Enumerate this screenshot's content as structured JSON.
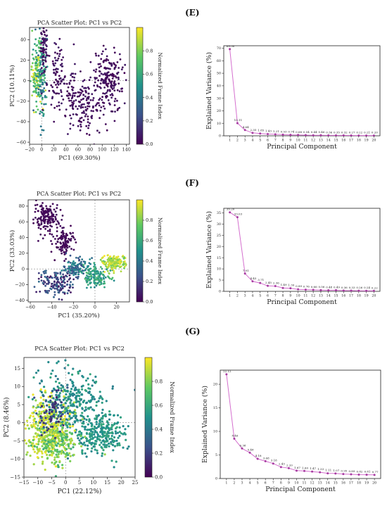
{
  "panels": [
    {
      "letter": "(E)"
    },
    {
      "letter": "(F)"
    },
    {
      "letter": "(G)"
    }
  ],
  "colormap": [
    "#440154",
    "#3b528b",
    "#21918c",
    "#5ec962",
    "#fde725"
  ],
  "chart_data": [
    {
      "id": "E_scatter",
      "type": "scatter",
      "title": "PCA Scatter Plot: PC1 vs PC2",
      "xlabel": "PC1 (69.30%)",
      "ylabel": "PC2 (10.11%)",
      "xlim": [
        -20,
        145
      ],
      "ylim": [
        -62,
        52
      ],
      "xticks": [
        -20,
        0,
        20,
        40,
        60,
        80,
        100,
        120,
        140
      ],
      "yticks": [
        -60,
        -40,
        -20,
        0,
        20,
        40
      ],
      "colorbar": {
        "label": "Normalized Frame Index",
        "range": [
          0,
          1
        ],
        "ticks": [
          "0.0",
          "0.2",
          "0.4",
          "0.6",
          "0.8"
        ]
      },
      "clusters": [
        {
          "cx": -8,
          "cy": 8,
          "sx": 5,
          "sy": 16,
          "n": 140,
          "c": [
            0.55,
            1.0
          ]
        },
        {
          "cx": 0,
          "cy": 5,
          "sx": 4,
          "sy": 22,
          "n": 110,
          "c": [
            0.3,
            0.7
          ]
        },
        {
          "cx": 3,
          "cy": 30,
          "sx": 3,
          "sy": 15,
          "n": 70,
          "c": [
            0.0,
            0.12
          ]
        },
        {
          "cx": 25,
          "cy": 5,
          "sx": 8,
          "sy": 15,
          "n": 80,
          "c": [
            0.0,
            0.1
          ]
        },
        {
          "cx": 50,
          "cy": -15,
          "sx": 12,
          "sy": 16,
          "n": 90,
          "c": [
            0.0,
            0.08
          ]
        },
        {
          "cx": 75,
          "cy": -25,
          "sx": 8,
          "sy": 15,
          "n": 80,
          "c": [
            0.0,
            0.08
          ]
        },
        {
          "cx": 110,
          "cy": 0,
          "sx": 13,
          "sy": 15,
          "n": 200,
          "c": [
            0.0,
            0.08
          ]
        }
      ]
    },
    {
      "id": "E_variance",
      "type": "line",
      "xlabel": "Principal Component",
      "ylabel": "Explained Variance (%)",
      "ylim": [
        0,
        72
      ],
      "yticks": [
        0,
        10,
        20,
        30,
        40,
        50,
        60,
        70
      ],
      "x": [
        1,
        2,
        3,
        4,
        5,
        6,
        7,
        8,
        9,
        10,
        11,
        12,
        13,
        14,
        15,
        16,
        17,
        18,
        19,
        20
      ],
      "values": [
        69.3,
        10.11,
        4.64,
        2.35,
        1.85,
        1.43,
        1.21,
        0.93,
        0.74,
        0.68,
        0.54,
        0.44,
        0.46,
        0.36,
        0.35,
        0.32,
        0.27,
        0.22,
        0.21,
        0.2
      ],
      "labels": [
        "69.30",
        "10.11",
        "4.64",
        "2.35",
        "1.85",
        "1.43",
        "1.21",
        "0.93",
        "0.74",
        "0.68",
        "0.54",
        "0.44",
        "0.46",
        "0.36",
        "0.35",
        "0.32",
        "0.27",
        "0.22",
        "0.21",
        "0.20"
      ]
    },
    {
      "id": "F_scatter",
      "type": "scatter",
      "title": "PCA Scatter Plot: PC1 vs PC2",
      "xlabel": "PC1 (35.20%)",
      "ylabel": "PC2 (33.03%)",
      "xlim": [
        -62,
        32
      ],
      "ylim": [
        -42,
        88
      ],
      "xticks": [
        -60,
        -40,
        -20,
        0,
        20
      ],
      "yticks": [
        -40,
        -20,
        0,
        20,
        40,
        60,
        80
      ],
      "colorbar": {
        "label": "Normalized Frame Index",
        "range": [
          0,
          1
        ],
        "ticks": [
          "0.0",
          "0.2",
          "0.4",
          "0.6",
          "0.8"
        ]
      },
      "clusters": [
        {
          "cx": -45,
          "cy": 65,
          "sx": 6,
          "sy": 10,
          "n": 150,
          "c": [
            0.0,
            0.05
          ]
        },
        {
          "cx": -28,
          "cy": 35,
          "sx": 5,
          "sy": 10,
          "n": 100,
          "c": [
            0.0,
            0.05
          ]
        },
        {
          "cx": -35,
          "cy": -18,
          "sx": 8,
          "sy": 8,
          "n": 150,
          "c": [
            0.05,
            0.35
          ]
        },
        {
          "cx": -18,
          "cy": 0,
          "sx": 6,
          "sy": 7,
          "n": 120,
          "c": [
            0.2,
            0.5
          ]
        },
        {
          "cx": 2,
          "cy": -10,
          "sx": 6,
          "sy": 7,
          "n": 140,
          "c": [
            0.45,
            0.7
          ]
        },
        {
          "cx": 18,
          "cy": 8,
          "sx": 6,
          "sy": 5,
          "n": 160,
          "c": [
            0.75,
            1.0
          ]
        }
      ]
    },
    {
      "id": "F_variance",
      "type": "line",
      "xlabel": "Principal Component",
      "ylabel": "Explained Variance (%)",
      "ylim": [
        0,
        37
      ],
      "yticks": [
        0,
        5,
        10,
        15,
        20,
        25,
        30,
        35
      ],
      "x": [
        1,
        2,
        3,
        4,
        5,
        6,
        7,
        8,
        9,
        10,
        11,
        12,
        13,
        14,
        15,
        16,
        17,
        18,
        19,
        20
      ],
      "values": [
        35.2,
        33.03,
        7.91,
        4.45,
        3.71,
        2.45,
        2.36,
        1.49,
        1.39,
        0.89,
        0.76,
        0.66,
        0.56,
        0.48,
        0.49,
        0.36,
        0.33,
        0.26,
        0.24,
        0.22
      ],
      "labels": [
        "35.20",
        "33.03",
        "7.91",
        "4.45",
        "3.71",
        "2.45",
        "2.36",
        "1.49",
        "1.39",
        "0.89",
        "0.76",
        "0.66",
        "0.56",
        "0.48",
        "0.49",
        "0.36",
        "0.33",
        "0.26",
        "0.24",
        "0.22"
      ]
    },
    {
      "id": "G_scatter",
      "type": "scatter",
      "title": "PCA Scatter Plot: PC1 vs PC2",
      "xlabel": "PC1 (22.12%)",
      "ylabel": "PC2 (8.46%)",
      "xlim": [
        -15,
        25
      ],
      "ylim": [
        -15,
        18
      ],
      "xticks": [
        -15,
        -10,
        -5,
        0,
        5,
        10,
        15,
        20,
        25
      ],
      "yticks": [
        -15,
        -10,
        -5,
        0,
        5,
        10,
        15
      ],
      "colorbar": {
        "label": "Normalized Frame Index",
        "range": [
          0,
          1
        ],
        "ticks": [
          "0.0",
          "0.2",
          "0.4",
          "0.6",
          "0.8"
        ]
      },
      "clusters": [
        {
          "cx": 2,
          "cy": 5,
          "sx": 6,
          "sy": 5,
          "n": 350,
          "c": [
            0.4,
            0.6
          ]
        },
        {
          "cx": 13,
          "cy": -3,
          "sx": 4,
          "sy": 3,
          "n": 250,
          "c": [
            0.45,
            0.6
          ]
        },
        {
          "cx": -6,
          "cy": -2,
          "sx": 4,
          "sy": 4,
          "n": 350,
          "c": [
            0.8,
            1.0
          ]
        },
        {
          "cx": -3,
          "cy": -6,
          "sx": 4,
          "sy": 3,
          "n": 150,
          "c": [
            0.6,
            0.9
          ]
        },
        {
          "cx": -5,
          "cy": 3,
          "sx": 3,
          "sy": 3,
          "n": 80,
          "c": [
            0.1,
            0.35
          ]
        }
      ]
    },
    {
      "id": "G_variance",
      "type": "line",
      "xlabel": "Principal Component",
      "ylabel": "Explained Variance (%)",
      "ylim": [
        0,
        23
      ],
      "yticks": [
        0,
        5,
        10,
        15,
        20
      ],
      "x": [
        1,
        2,
        3,
        4,
        5,
        6,
        7,
        8,
        9,
        10,
        11,
        12,
        13,
        14,
        15,
        16,
        17,
        18,
        19,
        20
      ],
      "values": [
        22.12,
        8.46,
        6.38,
        5.48,
        4.18,
        3.68,
        3.18,
        2.43,
        2.2,
        1.67,
        1.6,
        1.47,
        1.33,
        1.11,
        1.07,
        0.95,
        0.89,
        0.82,
        0.81,
        0.77
      ],
      "labels": [
        "22.12",
        "8.46",
        "6.38",
        "5.48",
        "4.18",
        "3.68",
        "3.18",
        "2.43",
        "2.20",
        "1.67",
        "1.60",
        "1.47",
        "1.33",
        "1.11",
        "1.07",
        "0.95",
        "0.89",
        "0.82",
        "0.81",
        "0.77"
      ]
    }
  ]
}
